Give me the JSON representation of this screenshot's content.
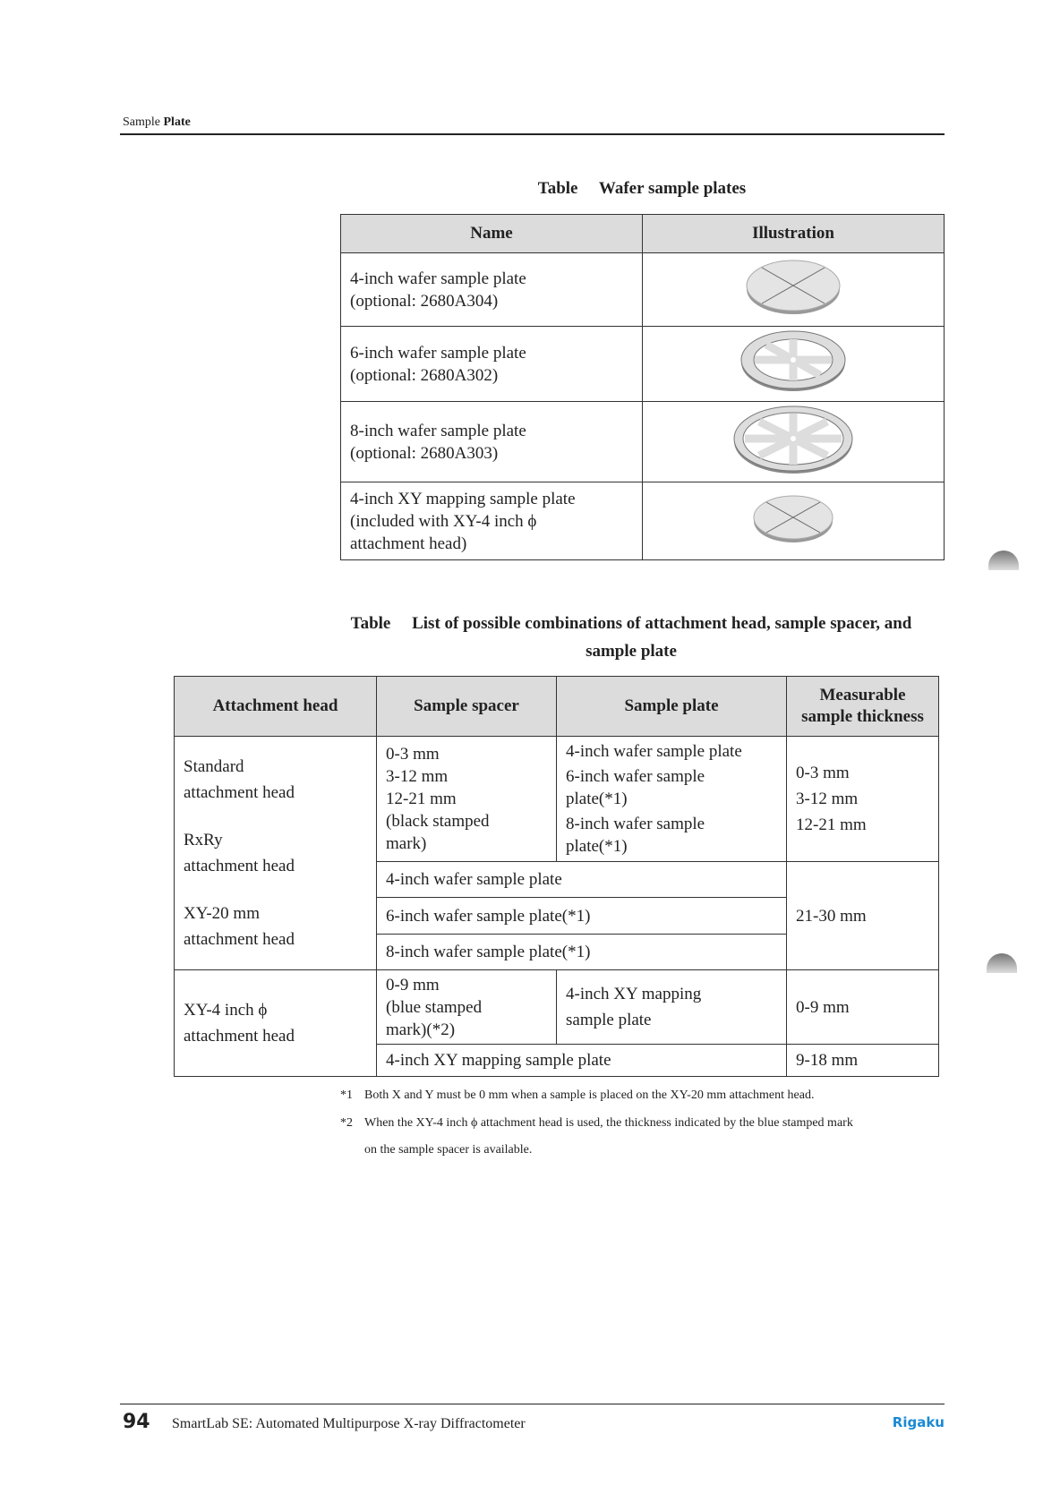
{
  "header": {
    "section_normal": "Sample",
    "section_bold": "Plate"
  },
  "table1": {
    "caption": "Table  Wafer sample plates",
    "headers": [
      "Name",
      "Illustration"
    ],
    "rows": [
      {
        "name_line1": "4-inch wafer sample plate",
        "name_line2": "(optional: 2680A304)",
        "name_line3": "",
        "icon": "plain-wafer-plate"
      },
      {
        "name_line1": "6-inch wafer sample plate",
        "name_line2": "(optional: 2680A302)",
        "name_line3": "",
        "icon": "spoked-wafer-plate"
      },
      {
        "name_line1": "8-inch wafer sample plate",
        "name_line2": "(optional: 2680A303)",
        "name_line3": "",
        "icon": "spoked-wafer-plate-large"
      },
      {
        "name_line1": "4-inch XY mapping sample plate",
        "name_line2": "(included with XY-4 inch ϕ",
        "name_line3": "attachment head)",
        "icon": "plain-wafer-plate-small"
      }
    ]
  },
  "table2": {
    "caption_line1": "Table  List of possible combinations of attachment head, sample spacer, and",
    "caption_line2": "sample plate",
    "headers": [
      "Attachment head",
      "Sample spacer",
      "Sample plate",
      "Measurable sample thickness"
    ],
    "heads_group1": [
      "Standard",
      "attachment head",
      "RxRy",
      "attachment head",
      "XY-20 mm",
      "attachment head"
    ],
    "spacer_group1": [
      "0-3 mm",
      "3-12 mm",
      "12-21 mm",
      "(black stamped",
      "mark)"
    ],
    "plate_group1": [
      "4-inch wafer sample plate",
      "6-inch wafer sample",
      "plate(*1)",
      "8-inch wafer sample",
      "plate(*1)"
    ],
    "thickness_group1": [
      "0-3 mm",
      "3-12 mm",
      "12-21 mm"
    ],
    "plates_full_width": [
      "4-inch wafer sample plate",
      "6-inch wafer sample plate(*1)",
      "8-inch wafer sample plate(*1)"
    ],
    "thickness_group2": "21-30 mm",
    "heads_group2": [
      "XY-4 inch ϕ",
      "attachment head"
    ],
    "spacer_group3": [
      "0-9 mm",
      "(blue stamped",
      "mark)(*2)"
    ],
    "plate_group3": [
      "4-inch XY mapping",
      "sample plate"
    ],
    "thickness_group3": "0-9 mm",
    "plate_group4": "4-inch XY mapping sample plate",
    "thickness_group4": "9-18 mm"
  },
  "footnotes": [
    {
      "marker": "*1",
      "text": "Both X and Y must be 0 mm when a sample is placed on the XY-20 mm attachment head.",
      "text2": ""
    },
    {
      "marker": "*2",
      "text": "When the XY-4 inch ϕ attachment head is used, the thickness indicated by the blue stamped mark",
      "text2": "on the sample spacer is available."
    }
  ],
  "footer": {
    "page_number": "94",
    "title": "SmartLab SE: Automated Multipurpose X-ray Diffractometer",
    "logo": "Rigaku",
    "logo_color": "#1a8ad4"
  }
}
